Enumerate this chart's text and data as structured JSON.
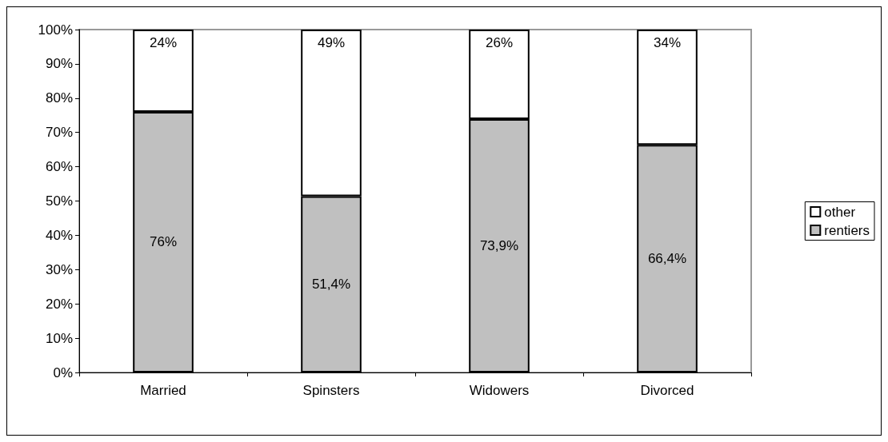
{
  "chart_data": {
    "type": "bar",
    "stacked": true,
    "categories": [
      "Married",
      "Spinsters",
      "Widowers",
      "Divorced"
    ],
    "series": [
      {
        "name": "rentiers",
        "color": "#c0c0c0",
        "values": [
          76,
          51.4,
          73.9,
          66.4
        ],
        "value_labels": [
          "76%",
          "51,4%",
          "73,9%",
          "66,4%"
        ]
      },
      {
        "name": "other",
        "color": "#ffffff",
        "values": [
          24,
          48.6,
          26.1,
          33.6
        ],
        "value_labels": [
          "24%",
          "49%",
          "26%",
          "34%"
        ]
      }
    ],
    "ylim": [
      0,
      100
    ],
    "yticks": [
      {
        "value": 0,
        "label": "0%"
      },
      {
        "value": 10,
        "label": "10%"
      },
      {
        "value": 20,
        "label": "20%"
      },
      {
        "value": 30,
        "label": "30%"
      },
      {
        "value": 40,
        "label": "40%"
      },
      {
        "value": 50,
        "label": "50%"
      },
      {
        "value": 60,
        "label": "60%"
      },
      {
        "value": 70,
        "label": "70%"
      },
      {
        "value": 80,
        "label": "80%"
      },
      {
        "value": 90,
        "label": "90%"
      },
      {
        "value": 100,
        "label": "100%"
      }
    ],
    "grid": false,
    "legend": "right"
  }
}
